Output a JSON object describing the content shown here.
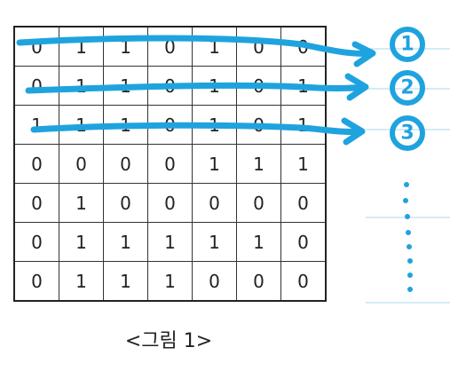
{
  "grid": {
    "rows": [
      [
        "0",
        "1",
        "1",
        "0",
        "1",
        "0",
        "0"
      ],
      [
        "0",
        "1",
        "1",
        "0",
        "1",
        "0",
        "1"
      ],
      [
        "1",
        "1",
        "1",
        "0",
        "1",
        "0",
        "1"
      ],
      [
        "0",
        "0",
        "0",
        "0",
        "1",
        "1",
        "1"
      ],
      [
        "0",
        "1",
        "0",
        "0",
        "0",
        "0",
        "0"
      ],
      [
        "0",
        "1",
        "1",
        "1",
        "1",
        "1",
        "0"
      ],
      [
        "0",
        "1",
        "1",
        "1",
        "0",
        "0",
        "0"
      ]
    ]
  },
  "caption": "<그림 1>",
  "annotations": {
    "labels": [
      "1",
      "2",
      "3"
    ],
    "color": "#1fa3df"
  }
}
